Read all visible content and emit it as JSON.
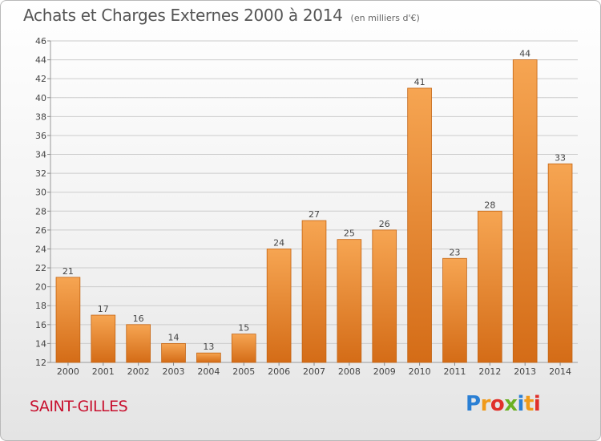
{
  "title": "Achats et Charges Externes 2000 à 2014",
  "subtitle": "(en milliers d'€)",
  "city": "SAINT-GILLES",
  "logo": {
    "text": "Proxiti",
    "letters": [
      {
        "char": "P",
        "color": "#2a7fd4"
      },
      {
        "char": "r",
        "color": "#f09a1a"
      },
      {
        "char": "o",
        "color": "#e0302a"
      },
      {
        "char": "x",
        "color": "#6ab023"
      },
      {
        "char": "i",
        "color": "#2a7fd4"
      },
      {
        "char": "t",
        "color": "#f09a1a"
      },
      {
        "char": "i",
        "color": "#e0302a"
      }
    ]
  },
  "colors": {
    "bar_light": "#f6a552",
    "bar_dark": "#d46c17",
    "bar_stroke": "#c36413",
    "grid": "#cccccc",
    "axis_text": "#444444",
    "city": "#c8102e"
  },
  "chart_data": {
    "type": "bar",
    "title": "Achats et Charges Externes 2000 à 2014",
    "subtitle": "(en milliers d'€)",
    "categories": [
      "2000",
      "2001",
      "2002",
      "2003",
      "2004",
      "2005",
      "2006",
      "2007",
      "2008",
      "2009",
      "2010",
      "2011",
      "2012",
      "2013",
      "2014"
    ],
    "values": [
      21,
      17,
      16,
      14,
      13,
      15,
      24,
      27,
      25,
      26,
      41,
      23,
      28,
      44,
      33
    ],
    "ylim": [
      12,
      46
    ],
    "ytick_step": 2,
    "grid": true,
    "data_labels": true
  }
}
